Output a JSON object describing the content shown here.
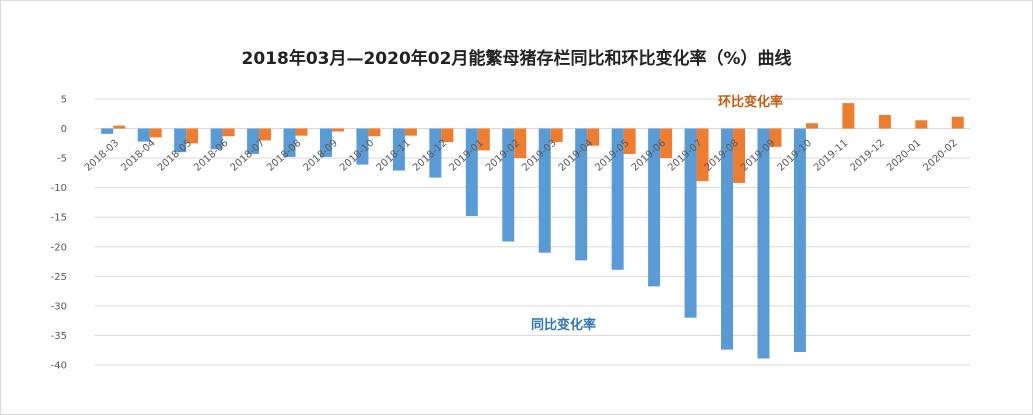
{
  "chart_data": {
    "type": "bar",
    "title": "2018年03月—2020年02月能繁母猪存栏同比和环比变化率（%）曲线",
    "xlabel": "",
    "ylabel": "",
    "ylim": [
      -40,
      5
    ],
    "yticks": [
      5,
      0,
      -5,
      -10,
      -15,
      -20,
      -25,
      -30,
      -35,
      -40
    ],
    "grid": true,
    "categories": [
      "2018-03",
      "2018-04",
      "2018-05",
      "2018-06",
      "2018-07",
      "2018-08",
      "2018-09",
      "2018-10",
      "2018-11",
      "2018-12",
      "2019-01",
      "2019-02",
      "2019-03",
      "2019-04",
      "2019-05",
      "2019-06",
      "2019-07",
      "2019-08",
      "2019-09",
      "2019-10",
      "2019-11",
      "2019-12",
      "2020-01",
      "2020-02"
    ],
    "series": [
      {
        "name": "同比变化率",
        "color": "#5b9bd5",
        "values": [
          -0.9,
          -2.2,
          -4.0,
          -3.5,
          -4.3,
          -4.8,
          -4.8,
          -6.1,
          -7.1,
          -8.3,
          -14.8,
          -19.1,
          -21.0,
          -22.3,
          -23.9,
          -26.7,
          -32.0,
          -37.4,
          -38.9,
          -37.8,
          null,
          null,
          null,
          null
        ]
      },
      {
        "name": "环比变化率",
        "color": "#ed7d31",
        "values": [
          0.5,
          -1.5,
          -2.5,
          -1.3,
          -2.0,
          -1.2,
          -0.5,
          -1.3,
          -1.2,
          -2.3,
          -3.7,
          -5.0,
          -2.3,
          -2.9,
          -4.3,
          -5.0,
          -8.9,
          -9.2,
          -3.1,
          0.9,
          4.3,
          2.3,
          1.4,
          2.0
        ]
      }
    ],
    "annotations": [
      {
        "text": "环比变化率",
        "series": "环比变化率",
        "color": "#c55a11"
      },
      {
        "text": "同比变化率",
        "series": "同比变化率",
        "color": "#2e75b6"
      }
    ]
  }
}
